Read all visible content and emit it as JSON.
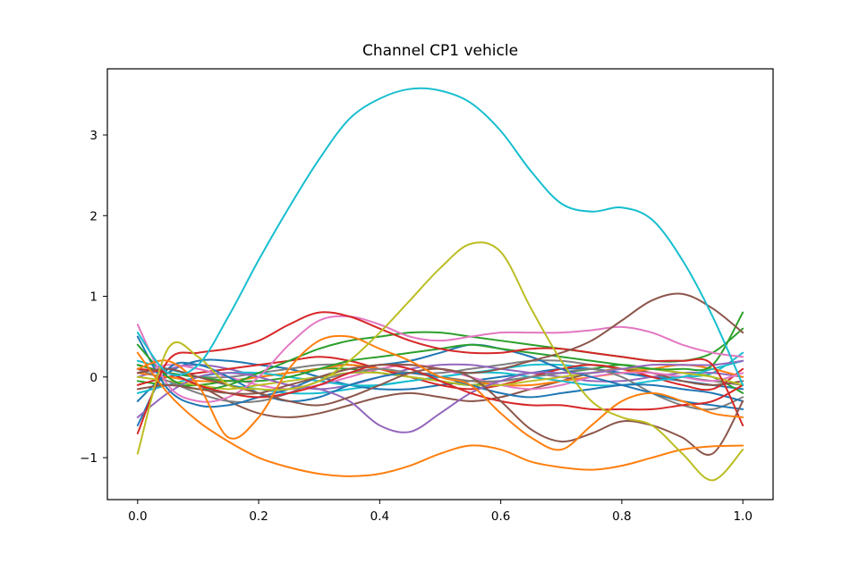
{
  "chart_data": {
    "type": "line",
    "title": "Channel CP1 vehicle",
    "xlabel": "",
    "ylabel": "",
    "xlim": [
      -0.05,
      1.05
    ],
    "ylim": [
      -1.52,
      3.82
    ],
    "xticks": [
      0.0,
      0.2,
      0.4,
      0.6,
      0.8,
      1.0
    ],
    "xtick_labels": [
      "0.0",
      "0.2",
      "0.4",
      "0.6",
      "0.8",
      "1.0"
    ],
    "yticks": [
      -1,
      0,
      1,
      2,
      3
    ],
    "ytick_labels": [
      "−1",
      "0",
      "1",
      "2",
      "3"
    ],
    "grid": false,
    "legend": "none",
    "x": [
      0.0,
      0.05,
      0.1,
      0.15,
      0.2,
      0.25,
      0.3,
      0.35,
      0.4,
      0.45,
      0.5,
      0.55,
      0.6,
      0.65,
      0.7,
      0.75,
      0.8,
      0.85,
      0.9,
      0.95,
      1.0
    ],
    "series": [
      {
        "color": "#17becf",
        "values": [
          0.55,
          0.05,
          0.15,
          0.75,
          1.45,
          2.1,
          2.7,
          3.2,
          3.45,
          3.57,
          3.55,
          3.4,
          3.05,
          2.55,
          2.15,
          2.05,
          2.1,
          1.95,
          1.45,
          0.75,
          -0.1
        ]
      },
      {
        "color": "#bcbd22",
        "values": [
          -0.95,
          0.35,
          0.25,
          -0.1,
          -0.15,
          -0.15,
          -0.05,
          0.2,
          0.55,
          0.95,
          1.35,
          1.65,
          1.55,
          0.85,
          0.2,
          -0.3,
          -0.5,
          -0.6,
          -0.95,
          -1.28,
          -0.9
        ]
      },
      {
        "color": "#ff7f0e",
        "values": [
          0.3,
          -0.2,
          -0.55,
          -0.8,
          -1.0,
          -1.12,
          -1.2,
          -1.23,
          -1.2,
          -1.1,
          -0.95,
          -0.85,
          -0.9,
          -1.05,
          -1.12,
          -1.15,
          -1.1,
          -1.0,
          -0.9,
          -0.86,
          -0.85
        ]
      },
      {
        "color": "#ff7f0e",
        "values": [
          0.1,
          0.2,
          -0.1,
          -0.75,
          -0.5,
          0.1,
          0.45,
          0.5,
          0.35,
          0.2,
          0.0,
          -0.1,
          -0.45,
          -0.75,
          -0.9,
          -0.6,
          -0.3,
          -0.2,
          -0.3,
          -0.45,
          -0.5
        ]
      },
      {
        "color": "#8c564b",
        "values": [
          0.05,
          0.1,
          0.0,
          -0.1,
          -0.2,
          -0.3,
          -0.35,
          -0.25,
          -0.1,
          0.05,
          0.1,
          0.0,
          -0.3,
          -0.65,
          -0.8,
          -0.7,
          -0.55,
          -0.6,
          -0.75,
          -0.95,
          -0.3
        ]
      },
      {
        "color": "#8c564b",
        "values": [
          -0.15,
          -0.1,
          -0.15,
          -0.2,
          -0.2,
          -0.1,
          0.0,
          0.1,
          0.15,
          0.15,
          0.1,
          0.05,
          0.1,
          0.2,
          0.3,
          0.45,
          0.7,
          0.95,
          1.03,
          0.85,
          0.55
        ]
      },
      {
        "color": "#d62728",
        "values": [
          -0.7,
          0.2,
          0.3,
          0.35,
          0.45,
          0.65,
          0.8,
          0.75,
          0.6,
          0.45,
          0.35,
          0.3,
          0.3,
          0.35,
          0.35,
          0.3,
          0.25,
          0.2,
          0.2,
          0.15,
          -0.6
        ]
      },
      {
        "color": "#d62728",
        "values": [
          0.1,
          0.05,
          -0.1,
          -0.2,
          -0.25,
          -0.2,
          -0.1,
          0.05,
          0.15,
          0.1,
          -0.05,
          -0.2,
          -0.3,
          -0.35,
          -0.35,
          -0.4,
          -0.4,
          -0.4,
          -0.35,
          -0.3,
          -0.1
        ]
      },
      {
        "color": "#e377c2",
        "values": [
          0.65,
          -0.1,
          -0.3,
          -0.25,
          0.0,
          0.4,
          0.7,
          0.75,
          0.65,
          0.5,
          0.45,
          0.5,
          0.55,
          0.55,
          0.55,
          0.58,
          0.62,
          0.55,
          0.4,
          0.3,
          0.25
        ]
      },
      {
        "color": "#9467bd",
        "values": [
          -0.5,
          -0.2,
          0.0,
          0.05,
          0.0,
          -0.1,
          -0.15,
          -0.3,
          -0.6,
          -0.68,
          -0.45,
          -0.2,
          -0.05,
          0.05,
          0.05,
          0.05,
          0.1,
          0.15,
          0.15,
          0.15,
          0.2
        ]
      },
      {
        "color": "#2ca02c",
        "values": [
          0.4,
          0.0,
          -0.15,
          -0.1,
          0.05,
          0.2,
          0.35,
          0.45,
          0.5,
          0.55,
          0.55,
          0.5,
          0.45,
          0.4,
          0.35,
          0.3,
          0.25,
          0.2,
          0.2,
          0.3,
          0.6
        ]
      },
      {
        "color": "#2ca02c",
        "values": [
          0.15,
          0.05,
          0.0,
          -0.05,
          -0.05,
          0.0,
          0.1,
          0.2,
          0.25,
          0.3,
          0.35,
          0.4,
          0.35,
          0.3,
          0.25,
          0.2,
          0.15,
          0.1,
          0.1,
          0.15,
          0.8
        ]
      },
      {
        "color": "#1f77b4",
        "values": [
          0.5,
          -0.15,
          -0.35,
          -0.35,
          -0.25,
          -0.15,
          0.0,
          0.1,
          0.15,
          0.2,
          0.3,
          0.4,
          0.35,
          0.25,
          0.1,
          0.0,
          -0.1,
          -0.2,
          -0.3,
          -0.35,
          -0.4
        ]
      },
      {
        "color": "#1f77b4",
        "values": [
          -0.6,
          0.1,
          0.15,
          0.0,
          -0.2,
          -0.3,
          -0.25,
          -0.1,
          0.0,
          0.05,
          0.0,
          -0.1,
          -0.2,
          -0.25,
          -0.2,
          -0.15,
          -0.1,
          -0.1,
          -0.15,
          -0.2,
          -0.3
        ]
      },
      {
        "color": "#7f7f7f",
        "values": [
          0.1,
          -0.05,
          -0.2,
          -0.3,
          -0.3,
          -0.2,
          -0.05,
          0.05,
          0.1,
          0.05,
          0.0,
          -0.05,
          -0.05,
          0.0,
          0.05,
          0.1,
          0.0,
          -0.2,
          -0.35,
          -0.4,
          -0.25
        ]
      },
      {
        "color": "#bcbd22",
        "values": [
          0.0,
          -0.05,
          -0.1,
          -0.15,
          -0.1,
          -0.05,
          0.0,
          0.05,
          0.05,
          0.0,
          -0.05,
          -0.1,
          -0.1,
          -0.05,
          0.0,
          0.05,
          0.1,
          0.1,
          0.05,
          0.0,
          -0.1
        ]
      },
      {
        "color": "#17becf",
        "values": [
          -0.2,
          -0.1,
          0.0,
          0.05,
          0.05,
          0.0,
          -0.05,
          -0.1,
          -0.1,
          -0.05,
          0.0,
          0.05,
          0.05,
          0.0,
          -0.05,
          -0.1,
          -0.1,
          -0.05,
          0.0,
          0.1,
          0.2
        ]
      },
      {
        "color": "#e377c2",
        "values": [
          0.05,
          0.15,
          0.1,
          0.0,
          -0.1,
          -0.15,
          -0.1,
          0.0,
          0.1,
          0.15,
          0.1,
          0.0,
          -0.1,
          -0.15,
          -0.1,
          0.0,
          0.05,
          0.05,
          0.0,
          -0.05,
          0.05
        ]
      },
      {
        "color": "#ff7f0e",
        "values": [
          0.05,
          0.0,
          -0.05,
          -0.05,
          0.0,
          0.05,
          0.1,
          0.15,
          0.1,
          0.05,
          0.0,
          -0.05,
          -0.1,
          -0.1,
          -0.05,
          0.0,
          0.05,
          0.1,
          0.15,
          0.1,
          0.0
        ]
      },
      {
        "color": "#8c564b",
        "values": [
          0.15,
          0.05,
          -0.1,
          -0.3,
          -0.45,
          -0.5,
          -0.45,
          -0.35,
          -0.25,
          -0.2,
          -0.25,
          -0.3,
          -0.25,
          -0.15,
          -0.05,
          0.05,
          0.1,
          0.05,
          -0.05,
          -0.1,
          -0.05
        ]
      },
      {
        "color": "#d62728",
        "values": [
          -0.1,
          0.0,
          0.05,
          0.1,
          0.15,
          0.2,
          0.25,
          0.2,
          0.1,
          0.0,
          -0.1,
          -0.15,
          -0.1,
          0.0,
          0.1,
          0.15,
          0.1,
          0.0,
          -0.1,
          -0.15,
          0.1
        ]
      },
      {
        "color": "#9467bd",
        "values": [
          0.0,
          0.1,
          0.15,
          0.1,
          0.0,
          -0.1,
          -0.15,
          -0.1,
          0.0,
          0.1,
          0.15,
          0.15,
          0.1,
          0.05,
          0.0,
          -0.05,
          -0.05,
          0.0,
          0.05,
          0.05,
          0.0
        ]
      },
      {
        "color": "#2ca02c",
        "values": [
          -0.05,
          -0.1,
          -0.1,
          -0.05,
          0.0,
          0.05,
          0.1,
          0.1,
          0.05,
          0.0,
          -0.05,
          -0.1,
          -0.05,
          0.0,
          0.05,
          0.1,
          0.15,
          0.1,
          0.05,
          0.0,
          -0.2
        ]
      },
      {
        "color": "#7f7f7f",
        "values": [
          0.1,
          0.05,
          0.0,
          0.0,
          0.05,
          0.1,
          0.15,
          0.15,
          0.1,
          0.05,
          0.05,
          0.1,
          0.15,
          0.2,
          0.2,
          0.15,
          0.1,
          0.05,
          0.0,
          -0.05,
          -0.1
        ]
      },
      {
        "color": "#1f77b4",
        "values": [
          -0.3,
          0.05,
          0.2,
          0.2,
          0.15,
          0.1,
          0.0,
          -0.1,
          -0.15,
          -0.15,
          -0.1,
          -0.05,
          0.0,
          0.05,
          0.1,
          0.1,
          0.05,
          0.0,
          -0.05,
          -0.1,
          -0.15
        ]
      },
      {
        "color": "#17becf",
        "values": [
          0.2,
          0.1,
          0.0,
          -0.1,
          -0.15,
          -0.2,
          -0.2,
          -0.15,
          -0.1,
          -0.05,
          0.0,
          0.05,
          0.1,
          0.15,
          0.15,
          0.1,
          0.05,
          0.0,
          0.0,
          0.05,
          0.3
        ]
      }
    ]
  }
}
